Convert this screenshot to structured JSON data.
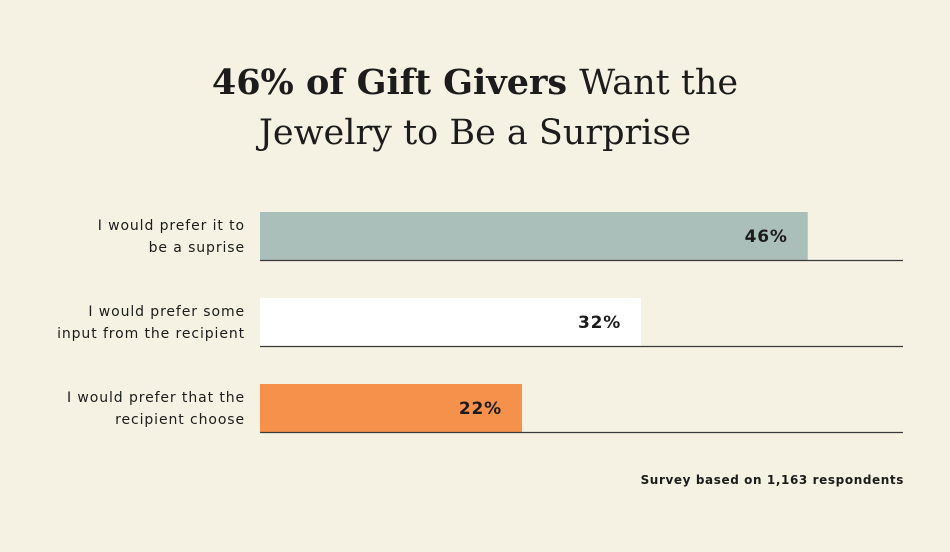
{
  "title": {
    "bold_part": "46% of Gift Givers",
    "regular_part_line1": "Want the",
    "regular_part_line2": "Jewelry to Be a Surprise"
  },
  "footnote": "Survey based on 1,163 respondents",
  "colors": {
    "background": "#f5f2e3",
    "bar_surprise": "#aabfb9",
    "bar_input": "#ffffff",
    "bar_choose": "#f6914b",
    "baseline": "#3a3a3a",
    "text": "#1c1c1c"
  },
  "chart_data": {
    "type": "bar",
    "orientation": "horizontal",
    "categories": [
      [
        "I would prefer it to",
        "be a suprise"
      ],
      [
        "I would prefer some",
        "input from the recipient"
      ],
      [
        "I would prefer that the",
        "recipient choose"
      ]
    ],
    "values": [
      46,
      32,
      22
    ],
    "value_labels": [
      "46%",
      "32%",
      "22%"
    ],
    "bar_colors": [
      "#aabfb9",
      "#ffffff",
      "#f6914b"
    ],
    "xlim": [
      0,
      54
    ],
    "grid": false,
    "legend": "none"
  }
}
